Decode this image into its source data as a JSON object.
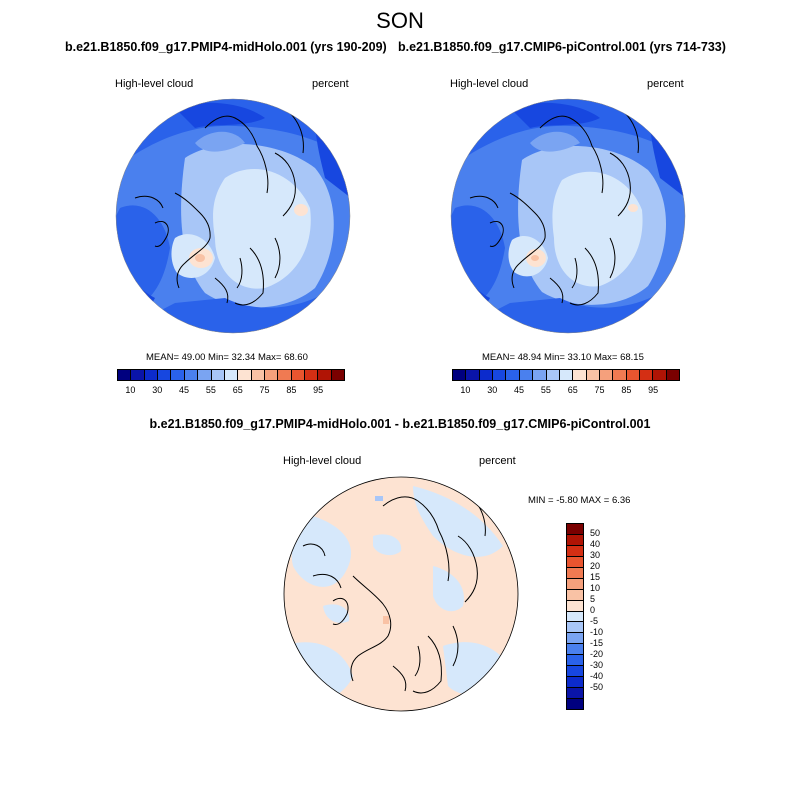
{
  "season": "SON",
  "panels": [
    {
      "title": "b.e21.B1850.f09_g17.PMIP4-midHolo.001 (yrs 190-209)",
      "variable": "High-level cloud",
      "units": "percent",
      "stats": "MEAN=  49.00  Min=  32.34  Max=  68.60"
    },
    {
      "title": "b.e21.B1850.f09_g17.CMIP6-piControl.001 (yrs 714-733)",
      "variable": "High-level cloud",
      "units": "percent",
      "stats": "MEAN=  48.94  Min=  33.10  Max=  68.15"
    }
  ],
  "difference": {
    "title": "b.e21.B1850.f09_g17.PMIP4-midHolo.001 - b.e21.B1850.f09_g17.CMIP6-piControl.001",
    "variable": "High-level cloud",
    "units": "percent",
    "stats": "MIN =  -5.80 MAX =   6.36"
  },
  "colorbar_main": {
    "colors": [
      "#00007f",
      "#0a14a8",
      "#0c2bcc",
      "#1747e0",
      "#2a62ea",
      "#4a80ee",
      "#7aa4f2",
      "#a8c6f7",
      "#d6e8fb",
      "#fde3d2",
      "#f9c2a5",
      "#f5a07c",
      "#f07a52",
      "#e9552f",
      "#d42f14",
      "#b01405",
      "#7a0000"
    ],
    "ticks": [
      "10",
      "30",
      "45",
      "55",
      "65",
      "75",
      "85",
      "95"
    ]
  },
  "colorbar_diff": {
    "colors": [
      "#7a0000",
      "#b01405",
      "#d42f14",
      "#e9552f",
      "#f07a52",
      "#f5a07c",
      "#f9c2a5",
      "#fde3d2",
      "#d6e8fb",
      "#a8c6f7",
      "#7aa4f2",
      "#4a80ee",
      "#2a62ea",
      "#1747e0",
      "#0c2bcc",
      "#0a14a8",
      "#00007f"
    ],
    "ticks": [
      "50",
      "40",
      "30",
      "20",
      "15",
      "10",
      "5",
      "0",
      "-5",
      "-10",
      "-15",
      "-20",
      "-30",
      "-40",
      "-50"
    ]
  }
}
